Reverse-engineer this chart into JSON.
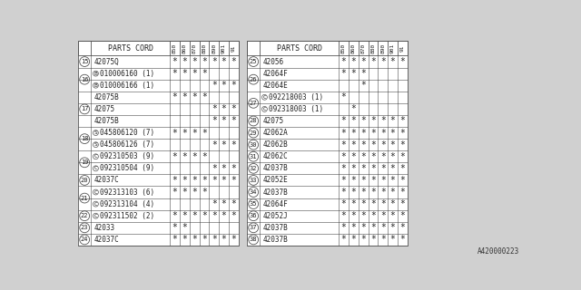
{
  "bg_color": "#d8d8d8",
  "border_color": "#444444",
  "text_color": "#222222",
  "left_table": {
    "rows": [
      {
        "num": "15",
        "part": "42075Q",
        "prefix": "",
        "marks": [
          1,
          1,
          1,
          1,
          1,
          1,
          1
        ]
      },
      {
        "num": "16",
        "part": "010006160 (1)",
        "prefix": "B",
        "marks": [
          1,
          1,
          1,
          1,
          0,
          0,
          0
        ]
      },
      {
        "num": "16",
        "part": "010006166 (1)",
        "prefix": "B",
        "marks": [
          0,
          0,
          0,
          0,
          1,
          1,
          1
        ]
      },
      {
        "num": "17",
        "part": "42075B",
        "prefix": "",
        "marks": [
          1,
          1,
          1,
          1,
          0,
          0,
          0
        ]
      },
      {
        "num": "17",
        "part": "42075",
        "prefix": "",
        "marks": [
          0,
          0,
          0,
          0,
          1,
          1,
          1
        ]
      },
      {
        "num": "17",
        "part": "42075B",
        "prefix": "",
        "marks": [
          0,
          0,
          0,
          0,
          1,
          1,
          1
        ]
      },
      {
        "num": "18",
        "part": "045806120 (7)",
        "prefix": "S",
        "marks": [
          1,
          1,
          1,
          1,
          0,
          0,
          0
        ]
      },
      {
        "num": "18",
        "part": "045806126 (7)",
        "prefix": "S",
        "marks": [
          0,
          0,
          0,
          0,
          1,
          1,
          1
        ]
      },
      {
        "num": "19",
        "part": "092310503 (9)",
        "prefix": "C",
        "marks": [
          1,
          1,
          1,
          1,
          0,
          0,
          0
        ]
      },
      {
        "num": "19",
        "part": "092310504 (9)",
        "prefix": "C",
        "marks": [
          0,
          0,
          0,
          0,
          1,
          1,
          1
        ]
      },
      {
        "num": "20",
        "part": "42037C",
        "prefix": "",
        "marks": [
          1,
          1,
          1,
          1,
          1,
          1,
          1
        ]
      },
      {
        "num": "21",
        "part": "092313103 (6)",
        "prefix": "C",
        "marks": [
          1,
          1,
          1,
          1,
          0,
          0,
          0
        ]
      },
      {
        "num": "21",
        "part": "092313104 (4)",
        "prefix": "C",
        "marks": [
          0,
          0,
          0,
          0,
          1,
          1,
          1
        ]
      },
      {
        "num": "22",
        "part": "092311502 (2)",
        "prefix": "C",
        "marks": [
          1,
          1,
          1,
          1,
          1,
          1,
          1
        ]
      },
      {
        "num": "23",
        "part": "42033",
        "prefix": "",
        "marks": [
          1,
          1,
          0,
          0,
          0,
          0,
          0
        ]
      },
      {
        "num": "24",
        "part": "42037C",
        "prefix": "",
        "marks": [
          1,
          1,
          1,
          1,
          1,
          1,
          1
        ]
      }
    ],
    "num_groups": {
      "15": [
        0
      ],
      "16": [
        1,
        2
      ],
      "17": [
        3,
        4,
        5
      ],
      "18": [
        6,
        7
      ],
      "19": [
        8,
        9
      ],
      "20": [
        10
      ],
      "21": [
        11,
        12
      ],
      "22": [
        13
      ],
      "23": [
        14
      ],
      "24": [
        15
      ]
    }
  },
  "right_table": {
    "rows": [
      {
        "num": "25",
        "part": "42056",
        "prefix": "",
        "marks": [
          1,
          1,
          1,
          1,
          1,
          1,
          1
        ]
      },
      {
        "num": "26",
        "part": "42064F",
        "prefix": "",
        "marks": [
          1,
          1,
          1,
          0,
          0,
          0,
          0
        ]
      },
      {
        "num": "26",
        "part": "42064E",
        "prefix": "",
        "marks": [
          0,
          0,
          1,
          0,
          0,
          0,
          0
        ]
      },
      {
        "num": "27",
        "part": "092218003 (1)",
        "prefix": "C",
        "marks": [
          1,
          0,
          0,
          0,
          0,
          0,
          0
        ]
      },
      {
        "num": "27",
        "part": "092318003 (1)",
        "prefix": "C",
        "marks": [
          0,
          1,
          0,
          0,
          0,
          0,
          0
        ]
      },
      {
        "num": "28",
        "part": "42075",
        "prefix": "",
        "marks": [
          1,
          1,
          1,
          1,
          1,
          1,
          1
        ]
      },
      {
        "num": "29",
        "part": "42062A",
        "prefix": "",
        "marks": [
          1,
          1,
          1,
          1,
          1,
          1,
          1
        ]
      },
      {
        "num": "30",
        "part": "42062B",
        "prefix": "",
        "marks": [
          1,
          1,
          1,
          1,
          1,
          1,
          1
        ]
      },
      {
        "num": "31",
        "part": "42062C",
        "prefix": "",
        "marks": [
          1,
          1,
          1,
          1,
          1,
          1,
          1
        ]
      },
      {
        "num": "32",
        "part": "42037B",
        "prefix": "",
        "marks": [
          1,
          1,
          1,
          1,
          1,
          1,
          1
        ]
      },
      {
        "num": "33",
        "part": "42052E",
        "prefix": "",
        "marks": [
          1,
          1,
          1,
          1,
          1,
          1,
          1
        ]
      },
      {
        "num": "34",
        "part": "42037B",
        "prefix": "",
        "marks": [
          1,
          1,
          1,
          1,
          1,
          1,
          1
        ]
      },
      {
        "num": "35",
        "part": "42064F",
        "prefix": "",
        "marks": [
          1,
          1,
          1,
          1,
          1,
          1,
          1
        ]
      },
      {
        "num": "36",
        "part": "42052J",
        "prefix": "",
        "marks": [
          1,
          1,
          1,
          1,
          1,
          1,
          1
        ]
      },
      {
        "num": "37",
        "part": "42037B",
        "prefix": "",
        "marks": [
          1,
          1,
          1,
          1,
          1,
          1,
          1
        ]
      },
      {
        "num": "38",
        "part": "42037B",
        "prefix": "",
        "marks": [
          1,
          1,
          1,
          1,
          1,
          1,
          1
        ]
      }
    ],
    "num_groups": {
      "25": [
        0
      ],
      "26": [
        1,
        2
      ],
      "27": [
        3,
        4
      ],
      "28": [
        5
      ],
      "29": [
        6
      ],
      "30": [
        7
      ],
      "31": [
        8
      ],
      "32": [
        9
      ],
      "33": [
        10
      ],
      "34": [
        11
      ],
      "35": [
        12
      ],
      "36": [
        13
      ],
      "37": [
        14
      ],
      "38": [
        15
      ]
    }
  },
  "col_headers": [
    "850",
    "860",
    "870",
    "880",
    "890",
    "901",
    "91"
  ],
  "footer": "A420000223"
}
